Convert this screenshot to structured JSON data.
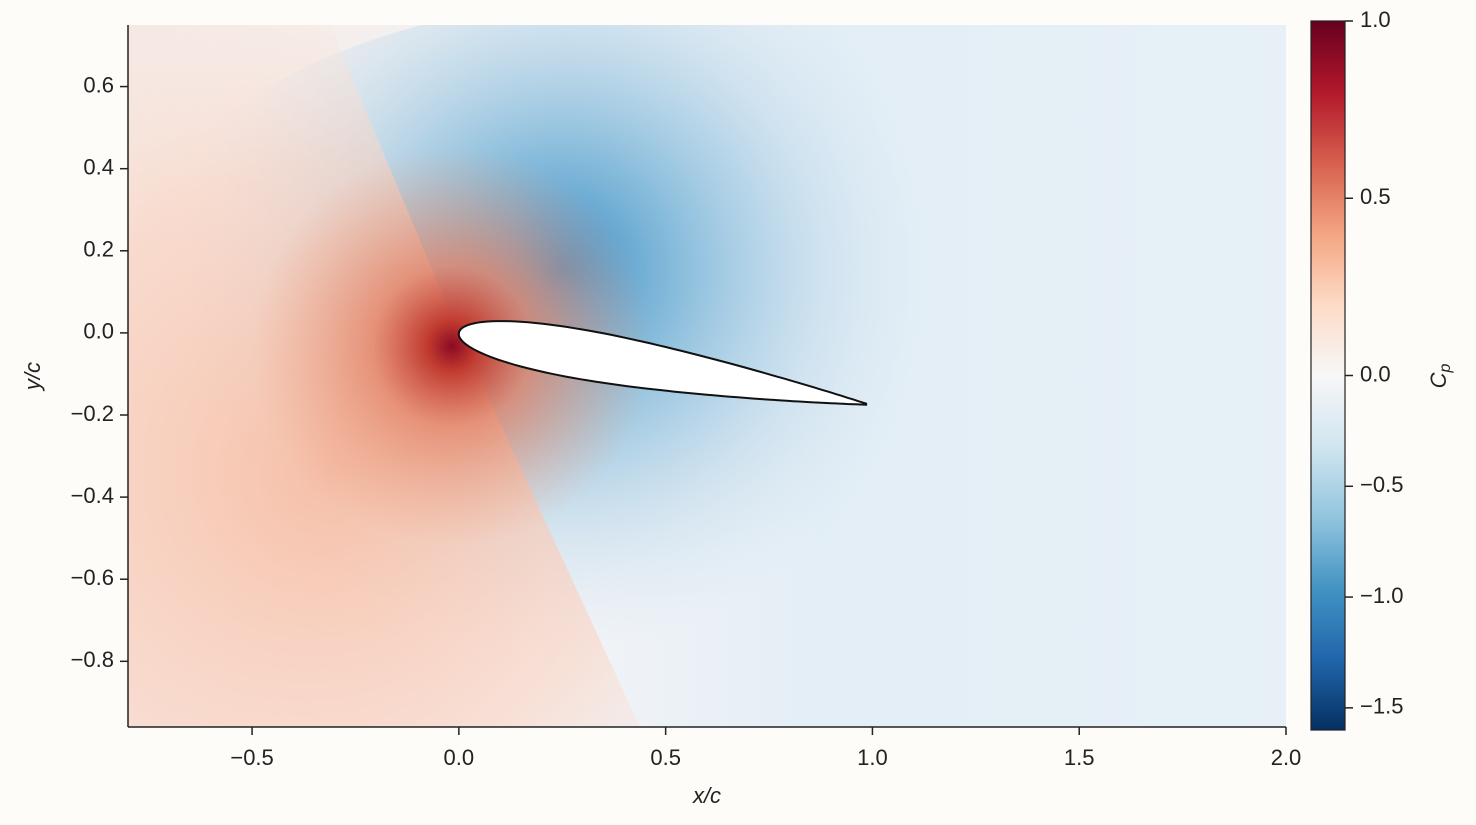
{
  "chart_data": {
    "type": "contour",
    "xlabel": "x/c",
    "ylabel": "y/c",
    "xlim": [
      -0.8,
      2.0
    ],
    "ylim": [
      -0.96,
      0.75
    ],
    "xticks": [
      {
        "value": -0.5,
        "label": "−0.5"
      },
      {
        "value": 0,
        "label": "0.0"
      },
      {
        "value": 0.5,
        "label": "0.5"
      },
      {
        "value": 1,
        "label": "1.0"
      },
      {
        "value": 1.5,
        "label": "1.5"
      },
      {
        "value": 2,
        "label": "2.0"
      }
    ],
    "yticks": [
      {
        "value": -0.8,
        "label": "−0.8"
      },
      {
        "value": -0.6,
        "label": "−0.6"
      },
      {
        "value": -0.4,
        "label": "−0.4"
      },
      {
        "value": -0.2,
        "label": "−0.2"
      },
      {
        "value": 0,
        "label": "0.0"
      },
      {
        "value": 0.2,
        "label": "0.2"
      },
      {
        "value": 0.4,
        "label": "0.4"
      },
      {
        "value": 0.6,
        "label": "0.6"
      }
    ],
    "colorbar": {
      "label": {
        "text": "C",
        "subscript": "p"
      },
      "lim": [
        -1.6,
        1.0
      ],
      "center": 0,
      "ticks": [
        {
          "value": -1.5,
          "label": "−1.5"
        },
        {
          "value": -1,
          "label": "−1.0"
        },
        {
          "value": -0.5,
          "label": "−0.5"
        },
        {
          "value": 0,
          "label": "0.0"
        },
        {
          "value": 0.5,
          "label": "0.5"
        },
        {
          "value": 1,
          "label": "1.0"
        }
      ],
      "colormap": [
        "#053061",
        "#2166ac",
        "#4393c3",
        "#92c5de",
        "#d1e5f0",
        "#f7f7f7",
        "#fddbc7",
        "#f4a582",
        "#d6604d",
        "#b2182b",
        "#67001f"
      ]
    }
  }
}
